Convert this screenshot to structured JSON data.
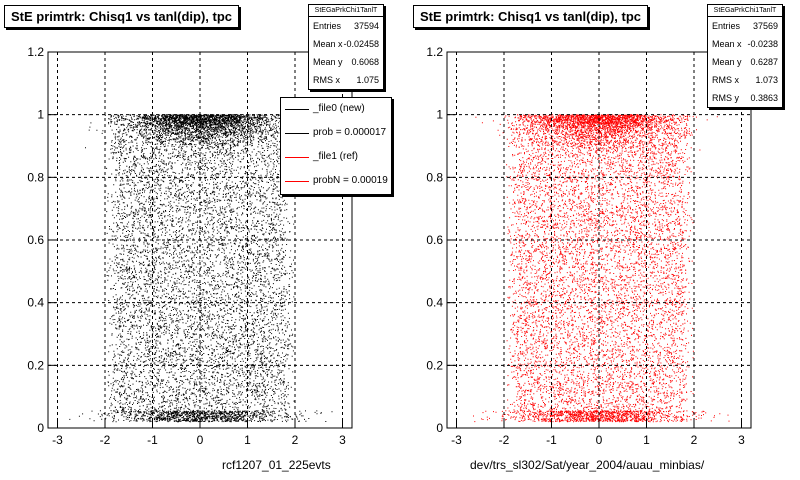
{
  "chart_data": [
    {
      "type": "scatter",
      "title": "StE primtrk: Chisq1 vs tanl(dip), tpc",
      "xlabel": "rcf1207_01_225evts",
      "ylabel": "",
      "xlim": [
        -3.2,
        3.2
      ],
      "ylim": [
        0,
        1.2
      ],
      "x_ticks": [
        "-3",
        "-2",
        "-1",
        "0",
        "1",
        "2",
        "3"
      ],
      "y_ticks": [
        "0",
        "0.2",
        "0.4",
        "0.6",
        "0.8",
        "1",
        "1.2"
      ],
      "grid": true,
      "marker_color": "#000000",
      "stats": {
        "name": "StEGaPrkChi1TanlT",
        "entries_label": "Entries",
        "entries": "37594",
        "mean_x_label": "Mean x",
        "mean_x": "-0.02458",
        "mean_y_label": "Mean y",
        "mean_y": "0.6068",
        "rms_x_label": "RMS x",
        "rms_x": "1.075"
      },
      "legend": [
        {
          "label": "_file0 (new)",
          "color": "#000000"
        },
        {
          "label": "prob = 0.000017",
          "color": "#000000"
        },
        {
          "label": "_file1 (ref)",
          "color": "#ff0000"
        },
        {
          "label": "probN = 0.00019",
          "color": "#ff0000"
        }
      ]
    },
    {
      "type": "scatter",
      "title": "StE primtrk: Chisq1 vs tanl(dip), tpc",
      "xlabel": "dev/trs_sl302/Sat/year_2004/auau_minbias/",
      "ylabel": "",
      "xlim": [
        -3.2,
        3.2
      ],
      "ylim": [
        0,
        1.2
      ],
      "x_ticks": [
        "-3",
        "-2",
        "-1",
        "0",
        "1",
        "2",
        "3"
      ],
      "y_ticks": [
        "0",
        "0.2",
        "0.4",
        "0.6",
        "0.8",
        "1",
        "1.2"
      ],
      "grid": true,
      "marker_color": "#ff0000",
      "stats": {
        "name": "StEGaPrkChi1TanlT",
        "entries_label": "Entries",
        "entries": "37569",
        "mean_x_label": "Mean x",
        "mean_x": "-0.0238",
        "mean_y_label": "Mean y",
        "mean_y": "0.6287",
        "rms_x_label": "RMS x",
        "rms_x": "1.073",
        "rms_y_label": "RMS y",
        "rms_y": "0.3863"
      }
    }
  ]
}
